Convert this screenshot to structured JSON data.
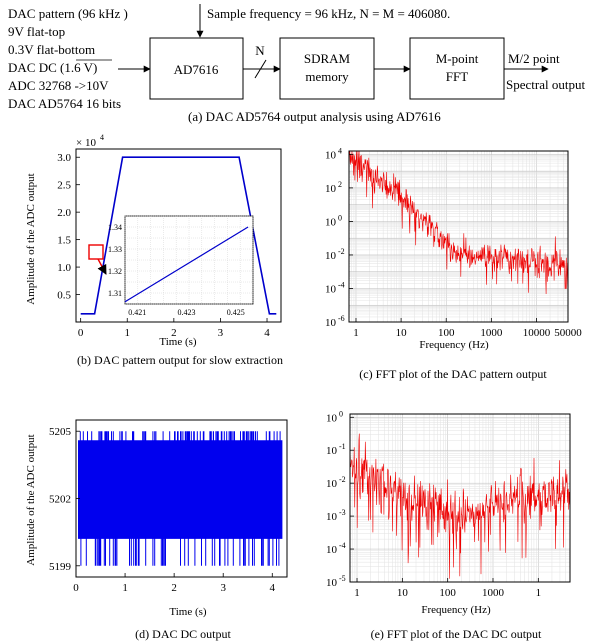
{
  "block_diagram": {
    "inputs": [
      "DAC pattern (96 kHz )",
      "9V flat-top",
      "0.3V flat-bottom",
      "DAC DC (1.6 V)",
      "ADC 32768 ->10V",
      "DAC AD5764 16 bits"
    ],
    "sample_frequency": "Sample frequency = 96 kHz, N = M = 406080.",
    "bus_label": "N",
    "blocks": [
      "AD7616",
      "SDRAM",
      "memory",
      "M-point",
      "FFT"
    ],
    "output_top": "M/2 point",
    "output_bottom": "Spectral output",
    "caption": "(a) DAC AD5764 output analysis using AD7616"
  },
  "panels": {
    "b": {
      "caption": "(b) DAC pattern output for slow extraction",
      "xlabel": "Time (s)",
      "ylabel": "Amplitude of the ADC output",
      "multiplier": "× 10",
      "multiplier_exp": "4",
      "xticks": [
        "0",
        "1",
        "2",
        "3",
        "4"
      ],
      "yticks": [
        "0.5",
        "1.0",
        "1.5",
        "2.0",
        "2.5",
        "3.0"
      ],
      "inset_xticks": [
        "0.421",
        "0.423",
        "0.425"
      ],
      "inset_yticks": [
        "1.31",
        "1.32",
        "1.33",
        "1.34"
      ]
    },
    "c": {
      "caption": "(c) FFT plot of the DAC pattern output",
      "xlabel": "Frequency  (Hz)",
      "xticks": [
        "1",
        "10",
        "100",
        "1000",
        "10000",
        "50000"
      ],
      "yticks": [
        {
          "base": "10",
          "exp": "4"
        },
        {
          "base": "10",
          "exp": "2"
        },
        {
          "base": "10",
          "exp": "0"
        },
        {
          "base": "10",
          "exp": "-2"
        },
        {
          "base": "10",
          "exp": "-4"
        },
        {
          "base": "10",
          "exp": "-6"
        }
      ]
    },
    "d": {
      "caption": "(d) DAC DC output",
      "xlabel": "Time (s)",
      "ylabel": "Amplitude of the ADC output",
      "xticks": [
        "0",
        "1",
        "2",
        "3",
        "4"
      ],
      "yticks": [
        "5205",
        "5202",
        "5199"
      ]
    },
    "e": {
      "caption": "(e) FFT plot of the DAC DC output",
      "xlabel": "Frequency  (Hz)",
      "xticks": [
        "1",
        "10",
        "100",
        "1000",
        "1"
      ],
      "yticks": [
        {
          "base": "10",
          "exp": "0"
        },
        {
          "base": "10",
          "exp": "-1"
        },
        {
          "base": "10",
          "exp": "-2"
        },
        {
          "base": "10",
          "exp": "-3"
        },
        {
          "base": "10",
          "exp": "-4"
        },
        {
          "base": "10",
          "exp": "-5"
        }
      ]
    }
  },
  "chart_data": [
    {
      "type": "line",
      "panel": "b",
      "x": [
        0,
        0.3,
        0.9,
        3.4,
        4.05,
        4.2
      ],
      "y": [
        1500,
        1500,
        30000,
        30000,
        1500,
        1500
      ],
      "xlim": [
        -0.1,
        4.3
      ],
      "ylim": [
        0,
        31500
      ],
      "color": "#0000cc"
    },
    {
      "type": "line",
      "panel": "b-inset",
      "x": [
        0.4205,
        0.4255
      ],
      "y": [
        13060,
        13400
      ],
      "xlim": [
        0.4205,
        0.4257
      ],
      "ylim": [
        13050,
        13450
      ],
      "color": "#0000cc"
    },
    {
      "type": "line",
      "panel": "c",
      "xlim": [
        0.7,
        50000
      ],
      "ylim": [
        -6,
        4.2
      ],
      "scale": "log",
      "color": "#ee0000"
    },
    {
      "type": "line",
      "panel": "d",
      "xlim": [
        0,
        4.3
      ],
      "ylim": [
        5198.5,
        5205.5
      ],
      "levels": [
        5199,
        5202,
        5205
      ],
      "color": "#0000ee"
    },
    {
      "type": "line",
      "panel": "e",
      "xlim": [
        0.7,
        50000
      ],
      "ylim": [
        -5,
        0.1
      ],
      "scale": "log",
      "color": "#ee0000"
    }
  ]
}
